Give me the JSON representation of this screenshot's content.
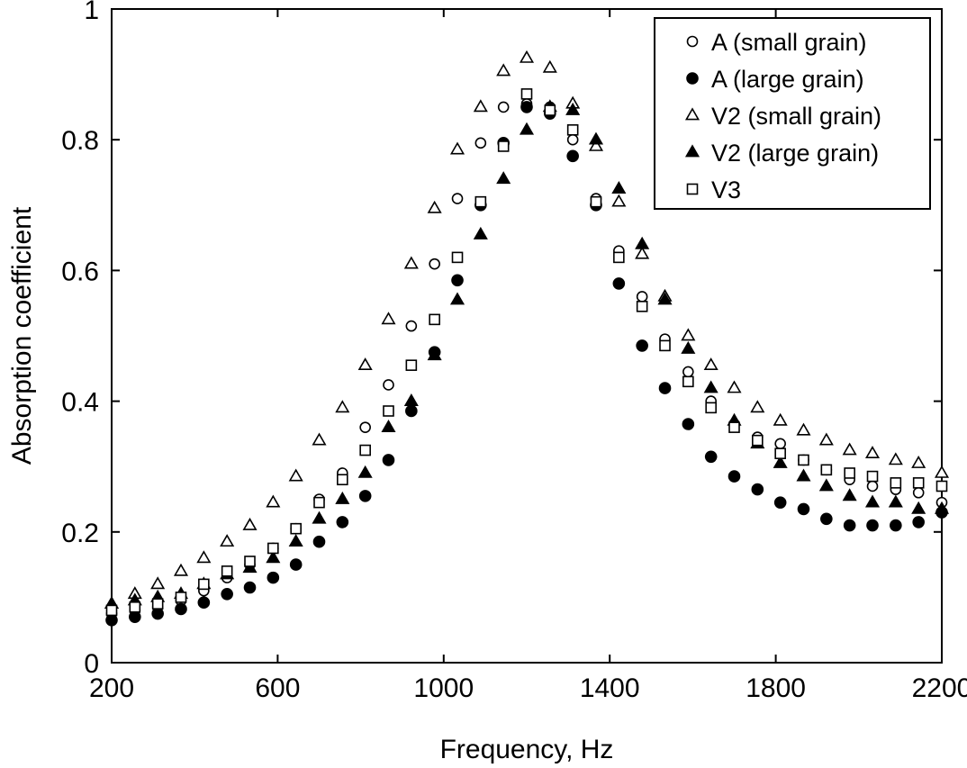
{
  "chart_data": {
    "type": "scatter",
    "title": "",
    "xlabel": "Frequency, Hz",
    "ylabel": "Absorption coefficient",
    "xlim": [
      200,
      2200
    ],
    "ylim": [
      0,
      1
    ],
    "xticks": [
      200,
      600,
      1000,
      1400,
      1800,
      2200
    ],
    "xtick_labels": [
      "200",
      "600",
      "1000",
      "1400",
      "1800",
      "2200"
    ],
    "yticks": [
      0,
      0.2,
      0.4,
      0.6,
      0.8,
      1
    ],
    "ytick_labels": [
      "0",
      "0.2",
      "0.4",
      "0.6",
      "0.8",
      "1"
    ],
    "grid": false,
    "legend_position": "top-right",
    "x": [
      200,
      256,
      311,
      367,
      422,
      478,
      533,
      589,
      644,
      700,
      756,
      811,
      867,
      922,
      978,
      1033,
      1089,
      1144,
      1200,
      1256,
      1311,
      1367,
      1422,
      1478,
      1533,
      1589,
      1644,
      1700,
      1756,
      1811,
      1867,
      1922,
      1978,
      2033,
      2089,
      2144,
      2200
    ],
    "series": [
      {
        "name": "A (small grain)",
        "marker": "circle-open",
        "values": [
          0.075,
          0.08,
          0.085,
          0.095,
          0.11,
          0.13,
          0.15,
          0.175,
          0.205,
          0.25,
          0.29,
          0.36,
          0.425,
          0.515,
          0.61,
          0.71,
          0.795,
          0.85,
          0.855,
          0.85,
          0.8,
          0.71,
          0.63,
          0.56,
          0.495,
          0.445,
          0.4,
          0.365,
          0.345,
          0.335,
          0.31,
          0.295,
          0.28,
          0.27,
          0.265,
          0.26,
          0.245
        ]
      },
      {
        "name": "A (large grain)",
        "marker": "circle-filled",
        "values": [
          0.065,
          0.07,
          0.075,
          0.082,
          0.092,
          0.105,
          0.115,
          0.13,
          0.15,
          0.185,
          0.215,
          0.255,
          0.31,
          0.385,
          0.475,
          0.585,
          0.7,
          0.795,
          0.85,
          0.84,
          0.775,
          0.7,
          0.58,
          0.485,
          0.42,
          0.365,
          0.315,
          0.285,
          0.265,
          0.245,
          0.235,
          0.22,
          0.21,
          0.21,
          0.21,
          0.215,
          0.23
        ]
      },
      {
        "name": "V2 (small grain)",
        "marker": "triangle-open",
        "values": [
          0.09,
          0.105,
          0.12,
          0.14,
          0.16,
          0.185,
          0.21,
          0.245,
          0.285,
          0.34,
          0.39,
          0.455,
          0.525,
          0.61,
          0.695,
          0.785,
          0.85,
          0.905,
          0.925,
          0.91,
          0.855,
          0.79,
          0.705,
          0.625,
          0.56,
          0.5,
          0.455,
          0.42,
          0.39,
          0.37,
          0.355,
          0.34,
          0.325,
          0.32,
          0.31,
          0.305,
          0.29
        ]
      },
      {
        "name": "V2 (large grain)",
        "marker": "triangle-filled",
        "values": [
          0.09,
          0.095,
          0.1,
          0.105,
          0.12,
          0.135,
          0.145,
          0.16,
          0.185,
          0.22,
          0.25,
          0.29,
          0.36,
          0.4,
          0.47,
          0.555,
          0.655,
          0.74,
          0.815,
          0.85,
          0.845,
          0.8,
          0.725,
          0.64,
          0.555,
          0.48,
          0.42,
          0.37,
          0.335,
          0.305,
          0.285,
          0.27,
          0.255,
          0.245,
          0.245,
          0.235,
          0.235
        ]
      },
      {
        "name": "V3",
        "marker": "square-open",
        "values": [
          0.08,
          0.085,
          0.09,
          0.1,
          0.12,
          0.14,
          0.155,
          0.175,
          0.205,
          0.245,
          0.28,
          0.325,
          0.385,
          0.455,
          0.525,
          0.62,
          0.705,
          0.79,
          0.87,
          0.845,
          0.815,
          0.705,
          0.62,
          0.545,
          0.485,
          0.43,
          0.39,
          0.36,
          0.34,
          0.32,
          0.31,
          0.295,
          0.29,
          0.285,
          0.275,
          0.275,
          0.27
        ]
      }
    ]
  }
}
